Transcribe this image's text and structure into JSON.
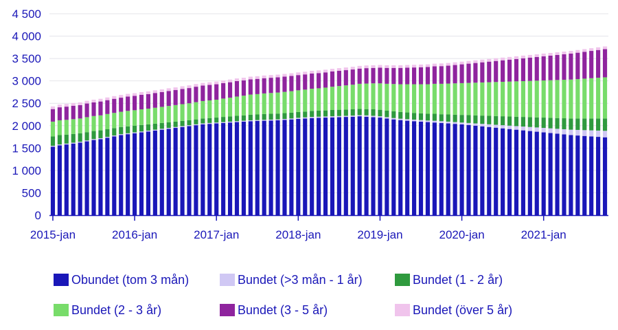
{
  "chart_data": {
    "type": "bar",
    "stacked": true,
    "title": "",
    "xlabel": "",
    "ylabel": "",
    "ylim": [
      0,
      4500
    ],
    "yticks": [
      0,
      500,
      1000,
      1500,
      2000,
      2500,
      3000,
      3500,
      4000,
      4500
    ],
    "ytick_labels": [
      "0",
      "500",
      "1 000",
      "1 500",
      "2 000",
      "2 500",
      "3 000",
      "3 500",
      "4 000",
      "4 500"
    ],
    "xtick_labels": [
      "2015-jan",
      "2016-jan",
      "2017-jan",
      "2018-jan",
      "2019-jan",
      "2020-jan",
      "2021-jan"
    ],
    "categories": [
      "2015-jan",
      "2015-feb",
      "2015-mar",
      "2015-apr",
      "2015-maj",
      "2015-jun",
      "2015-jul",
      "2015-aug",
      "2015-sep",
      "2015-okt",
      "2015-nov",
      "2015-dec",
      "2016-jan",
      "2016-feb",
      "2016-mar",
      "2016-apr",
      "2016-maj",
      "2016-jun",
      "2016-jul",
      "2016-aug",
      "2016-sep",
      "2016-okt",
      "2016-nov",
      "2016-dec",
      "2017-jan",
      "2017-feb",
      "2017-mar",
      "2017-apr",
      "2017-maj",
      "2017-jun",
      "2017-jul",
      "2017-aug",
      "2017-sep",
      "2017-okt",
      "2017-nov",
      "2017-dec",
      "2018-jan",
      "2018-feb",
      "2018-mar",
      "2018-apr",
      "2018-maj",
      "2018-jun",
      "2018-jul",
      "2018-aug",
      "2018-sep",
      "2018-okt",
      "2018-nov",
      "2018-dec",
      "2019-jan",
      "2019-feb",
      "2019-mar",
      "2019-apr",
      "2019-maj",
      "2019-jun",
      "2019-jul",
      "2019-aug",
      "2019-sep",
      "2019-okt",
      "2019-nov",
      "2019-dec",
      "2020-jan",
      "2020-feb",
      "2020-mar",
      "2020-apr",
      "2020-maj",
      "2020-jun",
      "2020-jul",
      "2020-aug",
      "2020-sep",
      "2020-okt",
      "2020-nov",
      "2020-dec",
      "2021-jan",
      "2021-feb",
      "2021-mar",
      "2021-apr",
      "2021-maj",
      "2021-jun",
      "2021-jul",
      "2021-aug",
      "2021-sep",
      "2021-okt"
    ],
    "series": [
      {
        "name": "Obundet (tom 3 mån)",
        "color": "#1a17b8",
        "values": [
          1530,
          1560,
          1580,
          1600,
          1620,
          1650,
          1680,
          1700,
          1730,
          1760,
          1790,
          1810,
          1830,
          1850,
          1870,
          1890,
          1910,
          1930,
          1950,
          1970,
          1990,
          2010,
          2030,
          2040,
          2050,
          2060,
          2070,
          2080,
          2090,
          2100,
          2105,
          2110,
          2115,
          2120,
          2130,
          2140,
          2150,
          2160,
          2170,
          2175,
          2180,
          2185,
          2190,
          2195,
          2200,
          2210,
          2200,
          2190,
          2180,
          2160,
          2140,
          2125,
          2110,
          2100,
          2090,
          2080,
          2070,
          2060,
          2050,
          2040,
          2030,
          2015,
          2000,
          1985,
          1970,
          1955,
          1940,
          1925,
          1910,
          1895,
          1880,
          1865,
          1850,
          1835,
          1820,
          1805,
          1790,
          1780,
          1770,
          1760,
          1750,
          1740
        ]
      },
      {
        "name": "Bundet (>3 mån - 1 år)",
        "color": "#d0c8f4",
        "values": [
          20,
          20,
          20,
          20,
          20,
          20,
          20,
          20,
          20,
          20,
          20,
          20,
          20,
          20,
          20,
          20,
          20,
          20,
          20,
          20,
          20,
          20,
          20,
          20,
          20,
          20,
          20,
          20,
          20,
          20,
          20,
          20,
          20,
          20,
          20,
          20,
          25,
          25,
          25,
          25,
          25,
          25,
          25,
          25,
          25,
          25,
          30,
          30,
          30,
          30,
          30,
          30,
          35,
          35,
          35,
          35,
          40,
          40,
          40,
          40,
          40,
          45,
          50,
          55,
          60,
          65,
          70,
          75,
          80,
          85,
          90,
          95,
          100,
          105,
          110,
          115,
          120,
          125,
          130,
          135,
          140,
          145
        ]
      },
      {
        "name": "Bundet (1 - 2 år)",
        "color": "#2f9a3e",
        "values": [
          210,
          210,
          200,
          195,
          190,
          185,
          180,
          175,
          170,
          165,
          160,
          155,
          150,
          145,
          140,
          135,
          130,
          125,
          120,
          115,
          110,
          110,
          110,
          110,
          110,
          115,
          115,
          120,
          120,
          125,
          125,
          130,
          130,
          130,
          130,
          130,
          130,
          130,
          135,
          135,
          135,
          140,
          140,
          140,
          140,
          140,
          140,
          145,
          145,
          145,
          150,
          150,
          150,
          150,
          150,
          150,
          155,
          155,
          160,
          165,
          170,
          175,
          180,
          185,
          190,
          195,
          200,
          205,
          210,
          215,
          220,
          225,
          230,
          235,
          240,
          245,
          250,
          255,
          260,
          265,
          270,
          275
        ]
      },
      {
        "name": "Bundet (2 - 3 år)",
        "color": "#78dc6a",
        "values": [
          330,
          330,
          330,
          330,
          330,
          335,
          335,
          335,
          340,
          340,
          340,
          345,
          345,
          350,
          350,
          355,
          360,
          365,
          370,
          375,
          380,
          385,
          390,
          395,
          400,
          410,
          420,
          430,
          440,
          450,
          455,
          460,
          465,
          470,
          475,
          480,
          485,
          490,
          495,
          500,
          510,
          520,
          530,
          540,
          550,
          560,
          570,
          580,
          590,
          600,
          610,
          620,
          630,
          640,
          650,
          660,
          670,
          680,
          690,
          700,
          710,
          720,
          730,
          740,
          750,
          760,
          770,
          780,
          790,
          800,
          810,
          820,
          830,
          840,
          850,
          860,
          870,
          880,
          890,
          900,
          910,
          920
        ]
      },
      {
        "name": "Bundet (3 - 5 år)",
        "color": "#8f249e",
        "values": [
          280,
          290,
          295,
          300,
          300,
          305,
          305,
          310,
          310,
          315,
          315,
          320,
          320,
          325,
          325,
          330,
          330,
          335,
          335,
          340,
          340,
          345,
          345,
          345,
          345,
          345,
          345,
          345,
          340,
          340,
          340,
          340,
          340,
          340,
          340,
          340,
          340,
          340,
          340,
          340,
          340,
          340,
          340,
          340,
          340,
          340,
          345,
          345,
          350,
          355,
          360,
          365,
          370,
          375,
          380,
          385,
          390,
          395,
          400,
          410,
          420,
          430,
          440,
          450,
          460,
          470,
          480,
          490,
          500,
          510,
          520,
          530,
          540,
          550,
          560,
          570,
          580,
          590,
          600,
          610,
          620,
          630
        ]
      },
      {
        "name": "Bundet (över 5 år)",
        "color": "#f0c4ec",
        "values": [
          60,
          60,
          60,
          60,
          60,
          60,
          60,
          60,
          60,
          60,
          60,
          60,
          60,
          60,
          60,
          60,
          60,
          60,
          60,
          60,
          60,
          60,
          60,
          60,
          60,
          60,
          60,
          60,
          60,
          60,
          60,
          60,
          60,
          60,
          60,
          60,
          60,
          60,
          60,
          60,
          60,
          60,
          60,
          60,
          60,
          60,
          60,
          60,
          60,
          60,
          60,
          60,
          60,
          60,
          60,
          60,
          60,
          60,
          60,
          60,
          60,
          60,
          60,
          60,
          60,
          60,
          60,
          60,
          60,
          60,
          60,
          60,
          60,
          60,
          60,
          60,
          60,
          60,
          60,
          60,
          60,
          60
        ]
      }
    ],
    "legend_placement": "bottom",
    "grid": "horizontal"
  }
}
